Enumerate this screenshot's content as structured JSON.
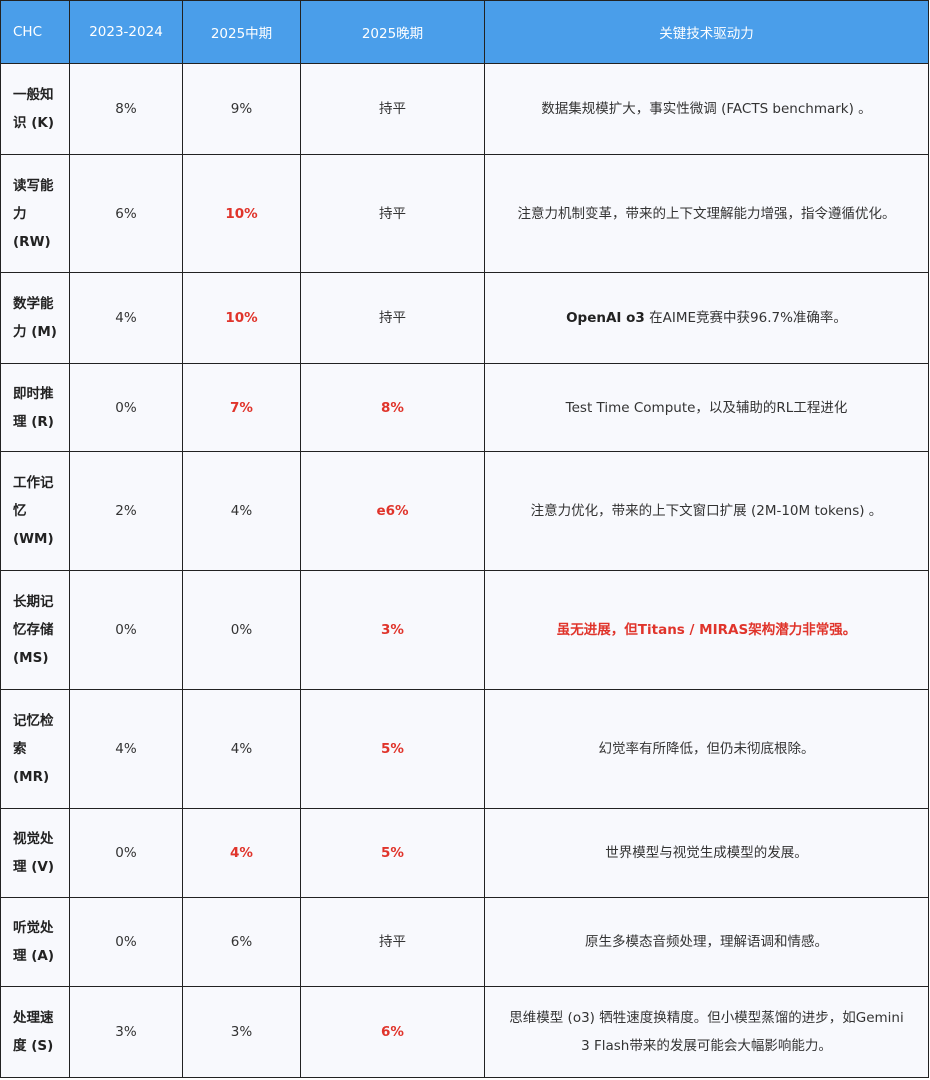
{
  "header": {
    "cols": [
      "CHC",
      "2023-2024",
      "2025中期",
      "2025晚期",
      "关键技术驱动力"
    ]
  },
  "accent_color": "#4a9eea",
  "highlight_color": "#e0342b",
  "rows": [
    {
      "name": "一般知识 (K)",
      "y2324": "8%",
      "mid": "9%",
      "late": "持平",
      "driver": "数据集规模扩大，事实性微调 (FACTS benchmark) 。",
      "red": [],
      "h": 91
    },
    {
      "name": "读写能力 (RW)",
      "y2324": "6%",
      "mid": "10%",
      "late": "持平",
      "driver": "注意力机制变革，带来的上下文理解能力增强，指令遵循优化。",
      "red": [
        "mid"
      ],
      "h": 118
    },
    {
      "name": "数学能力 (M)",
      "y2324": "4%",
      "mid": "10%",
      "late": "持平",
      "driver_bold": "OpenAI o3",
      "driver": " 在AIME竞赛中获96.7%准确率。",
      "red": [
        "mid"
      ],
      "h": 91
    },
    {
      "name": "即时推理 (R)",
      "y2324": "0%",
      "mid": "7%",
      "late": "8%",
      "driver": "Test Time Compute，以及辅助的RL工程进化",
      "red": [
        "mid",
        "late"
      ],
      "h": 88
    },
    {
      "name": "工作记忆 (WM)",
      "y2324": "2%",
      "mid": "4%",
      "late": "e6%",
      "driver": "注意力优化，带来的上下文窗口扩展 (2M-10M tokens) 。",
      "red": [
        "late"
      ],
      "h": 119
    },
    {
      "name": "长期记忆存储 (MS)",
      "y2324": "0%",
      "mid": "0%",
      "late": "3%",
      "driver": "虽无进展，但Titans / MIRAS架构潜力非常强。",
      "red": [
        "late",
        "driver"
      ],
      "h": 119
    },
    {
      "name": "记忆检索 (MR)",
      "y2324": "4%",
      "mid": "4%",
      "late": "5%",
      "driver": "幻觉率有所降低，但仍未彻底根除。",
      "red": [
        "late"
      ],
      "h": 119
    },
    {
      "name": "视觉处理 (V)",
      "y2324": "0%",
      "mid": "4%",
      "late": "5%",
      "driver": "世界模型与视觉生成模型的发展。",
      "red": [
        "mid",
        "late"
      ],
      "h": 89
    },
    {
      "name": "听觉处理 (A)",
      "y2324": "0%",
      "mid": "6%",
      "late": "持平",
      "driver": "原生多模态音频处理，理解语调和情感。",
      "red": [],
      "h": 89
    },
    {
      "name": "处理速度 (S)",
      "y2324": "3%",
      "mid": "3%",
      "late": "6%",
      "driver": "思维模型 (o3) 牺牲速度换精度。但小模型蒸馏的进步，如Gemini 3 Flash带来的发展可能会大幅影响能力。",
      "red": [
        "late"
      ],
      "h": 91
    }
  ]
}
